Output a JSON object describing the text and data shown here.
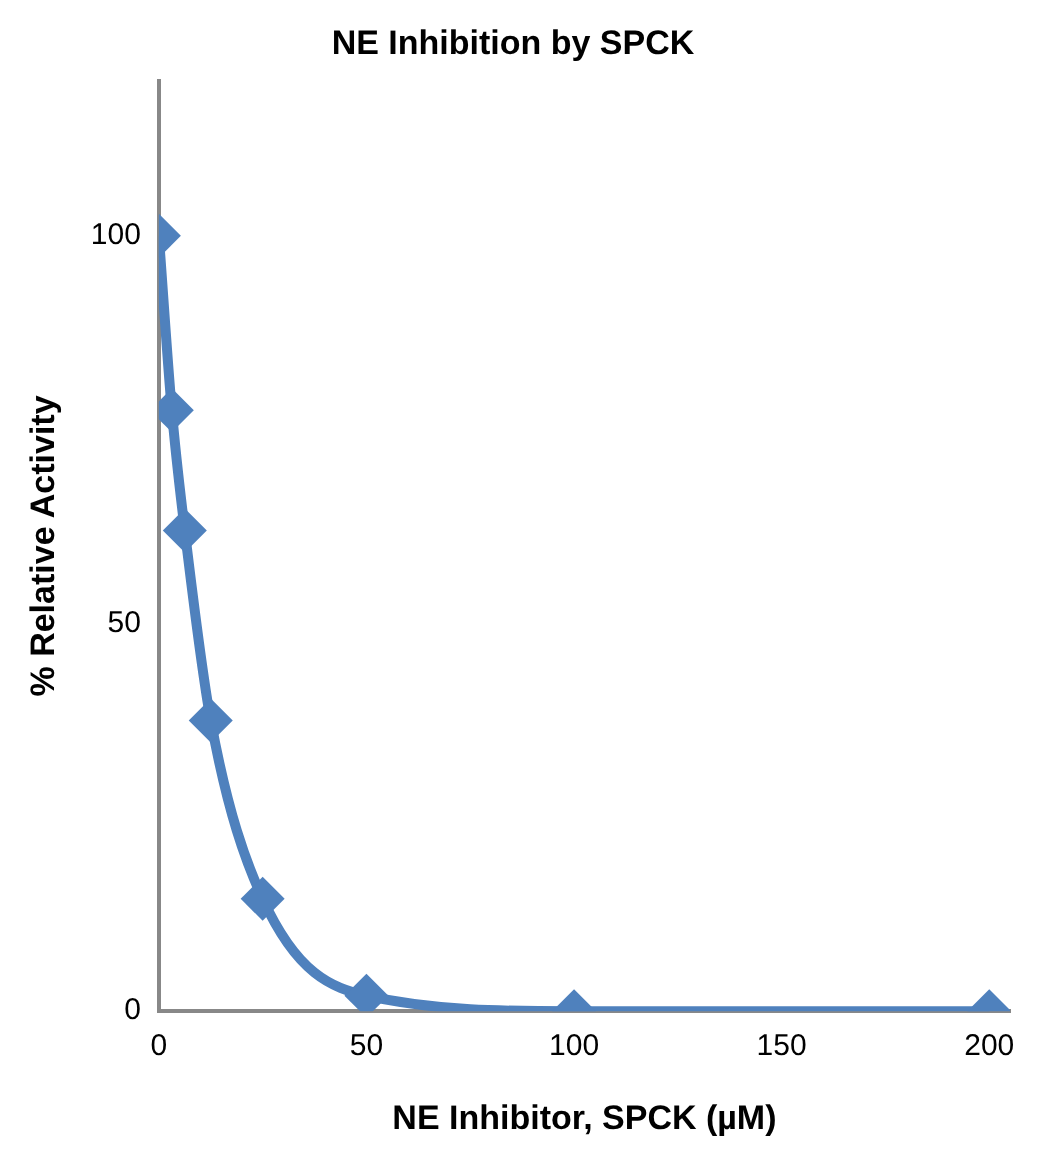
{
  "chart_data": {
    "type": "line",
    "title": "NE Inhibition by SPCK",
    "xlabel": "NE Inhibitor, SPCK (µM)",
    "ylabel": "% Relative Activity",
    "series": [
      {
        "color": "#4f81bd",
        "x": [
          0,
          3.125,
          6.25,
          12.5,
          25,
          50,
          100,
          200
        ],
        "values": [
          100,
          77.5,
          62,
          37.5,
          14.5,
          2,
          0,
          0
        ]
      }
    ],
    "xlim": [
      0,
      205
    ],
    "xticks": [
      0,
      50,
      100,
      150,
      200
    ],
    "ylim": [
      0,
      120
    ],
    "yticks": [
      0,
      50,
      100
    ],
    "grid": false,
    "legend": false,
    "marker": "diamond",
    "line_style": "solid"
  }
}
